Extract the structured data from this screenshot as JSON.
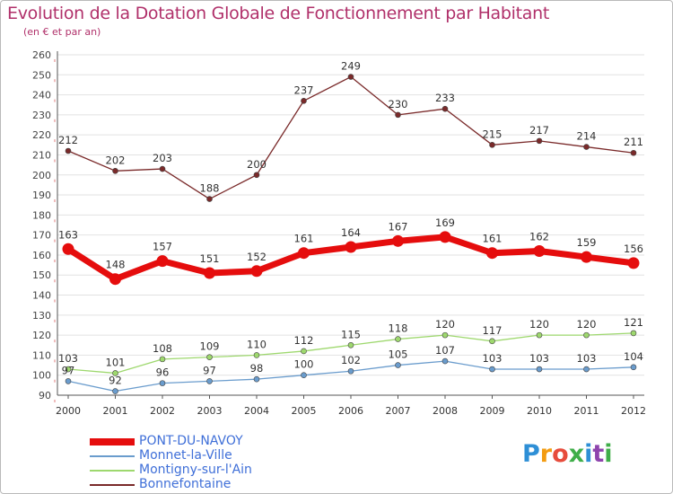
{
  "title": "Evolution de la Dotation Globale de Fonctionnement par Habitant",
  "subtitle": "(en € et par an)",
  "logo_text": "Proxiti",
  "colors": {
    "title": "#b0306a",
    "grid": "#e2e2e2",
    "axis": "#555555",
    "logo_letters": [
      "#2e8fd6",
      "#f39c12",
      "#e74c3c",
      "#3fae49",
      "#2e8fd6",
      "#8e44ad",
      "#3fae49"
    ]
  },
  "chart_data": {
    "type": "line",
    "title": "Evolution de la Dotation Globale de Fonctionnement par Habitant",
    "subtitle": "(en € et par an)",
    "xlabel": "",
    "ylabel": "",
    "ylim": [
      90,
      260
    ],
    "ytick_step": 10,
    "grid": true,
    "legend_position": "bottom-left",
    "categories": [
      "2000",
      "2001",
      "2002",
      "2003",
      "2004",
      "2005",
      "2006",
      "2007",
      "2008",
      "2009",
      "2010",
      "2011",
      "2012"
    ],
    "series": [
      {
        "name": "PONT-DU-NAVOY",
        "color": "#e50d0d",
        "labelColor": "#333333",
        "bold": true,
        "values": [
          163,
          148,
          157,
          151,
          152,
          161,
          164,
          167,
          169,
          161,
          162,
          159,
          156
        ]
      },
      {
        "name": "Monnet-la-Ville",
        "color": "#6a9ccd",
        "labelColor": "#333333",
        "bold": false,
        "values": [
          97,
          92,
          96,
          97,
          98,
          100,
          102,
          105,
          107,
          103,
          103,
          103,
          104
        ]
      },
      {
        "name": "Montigny-sur-l'Ain",
        "color": "#9ed86e",
        "labelColor": "#333333",
        "bold": false,
        "values": [
          103,
          101,
          108,
          109,
          110,
          112,
          115,
          118,
          120,
          117,
          120,
          120,
          121
        ]
      },
      {
        "name": "Bonnefontaine",
        "color": "#7a2a2a",
        "labelColor": "#333333",
        "bold": false,
        "values": [
          212,
          202,
          203,
          188,
          200,
          237,
          249,
          230,
          233,
          215,
          217,
          214,
          211
        ]
      }
    ]
  }
}
